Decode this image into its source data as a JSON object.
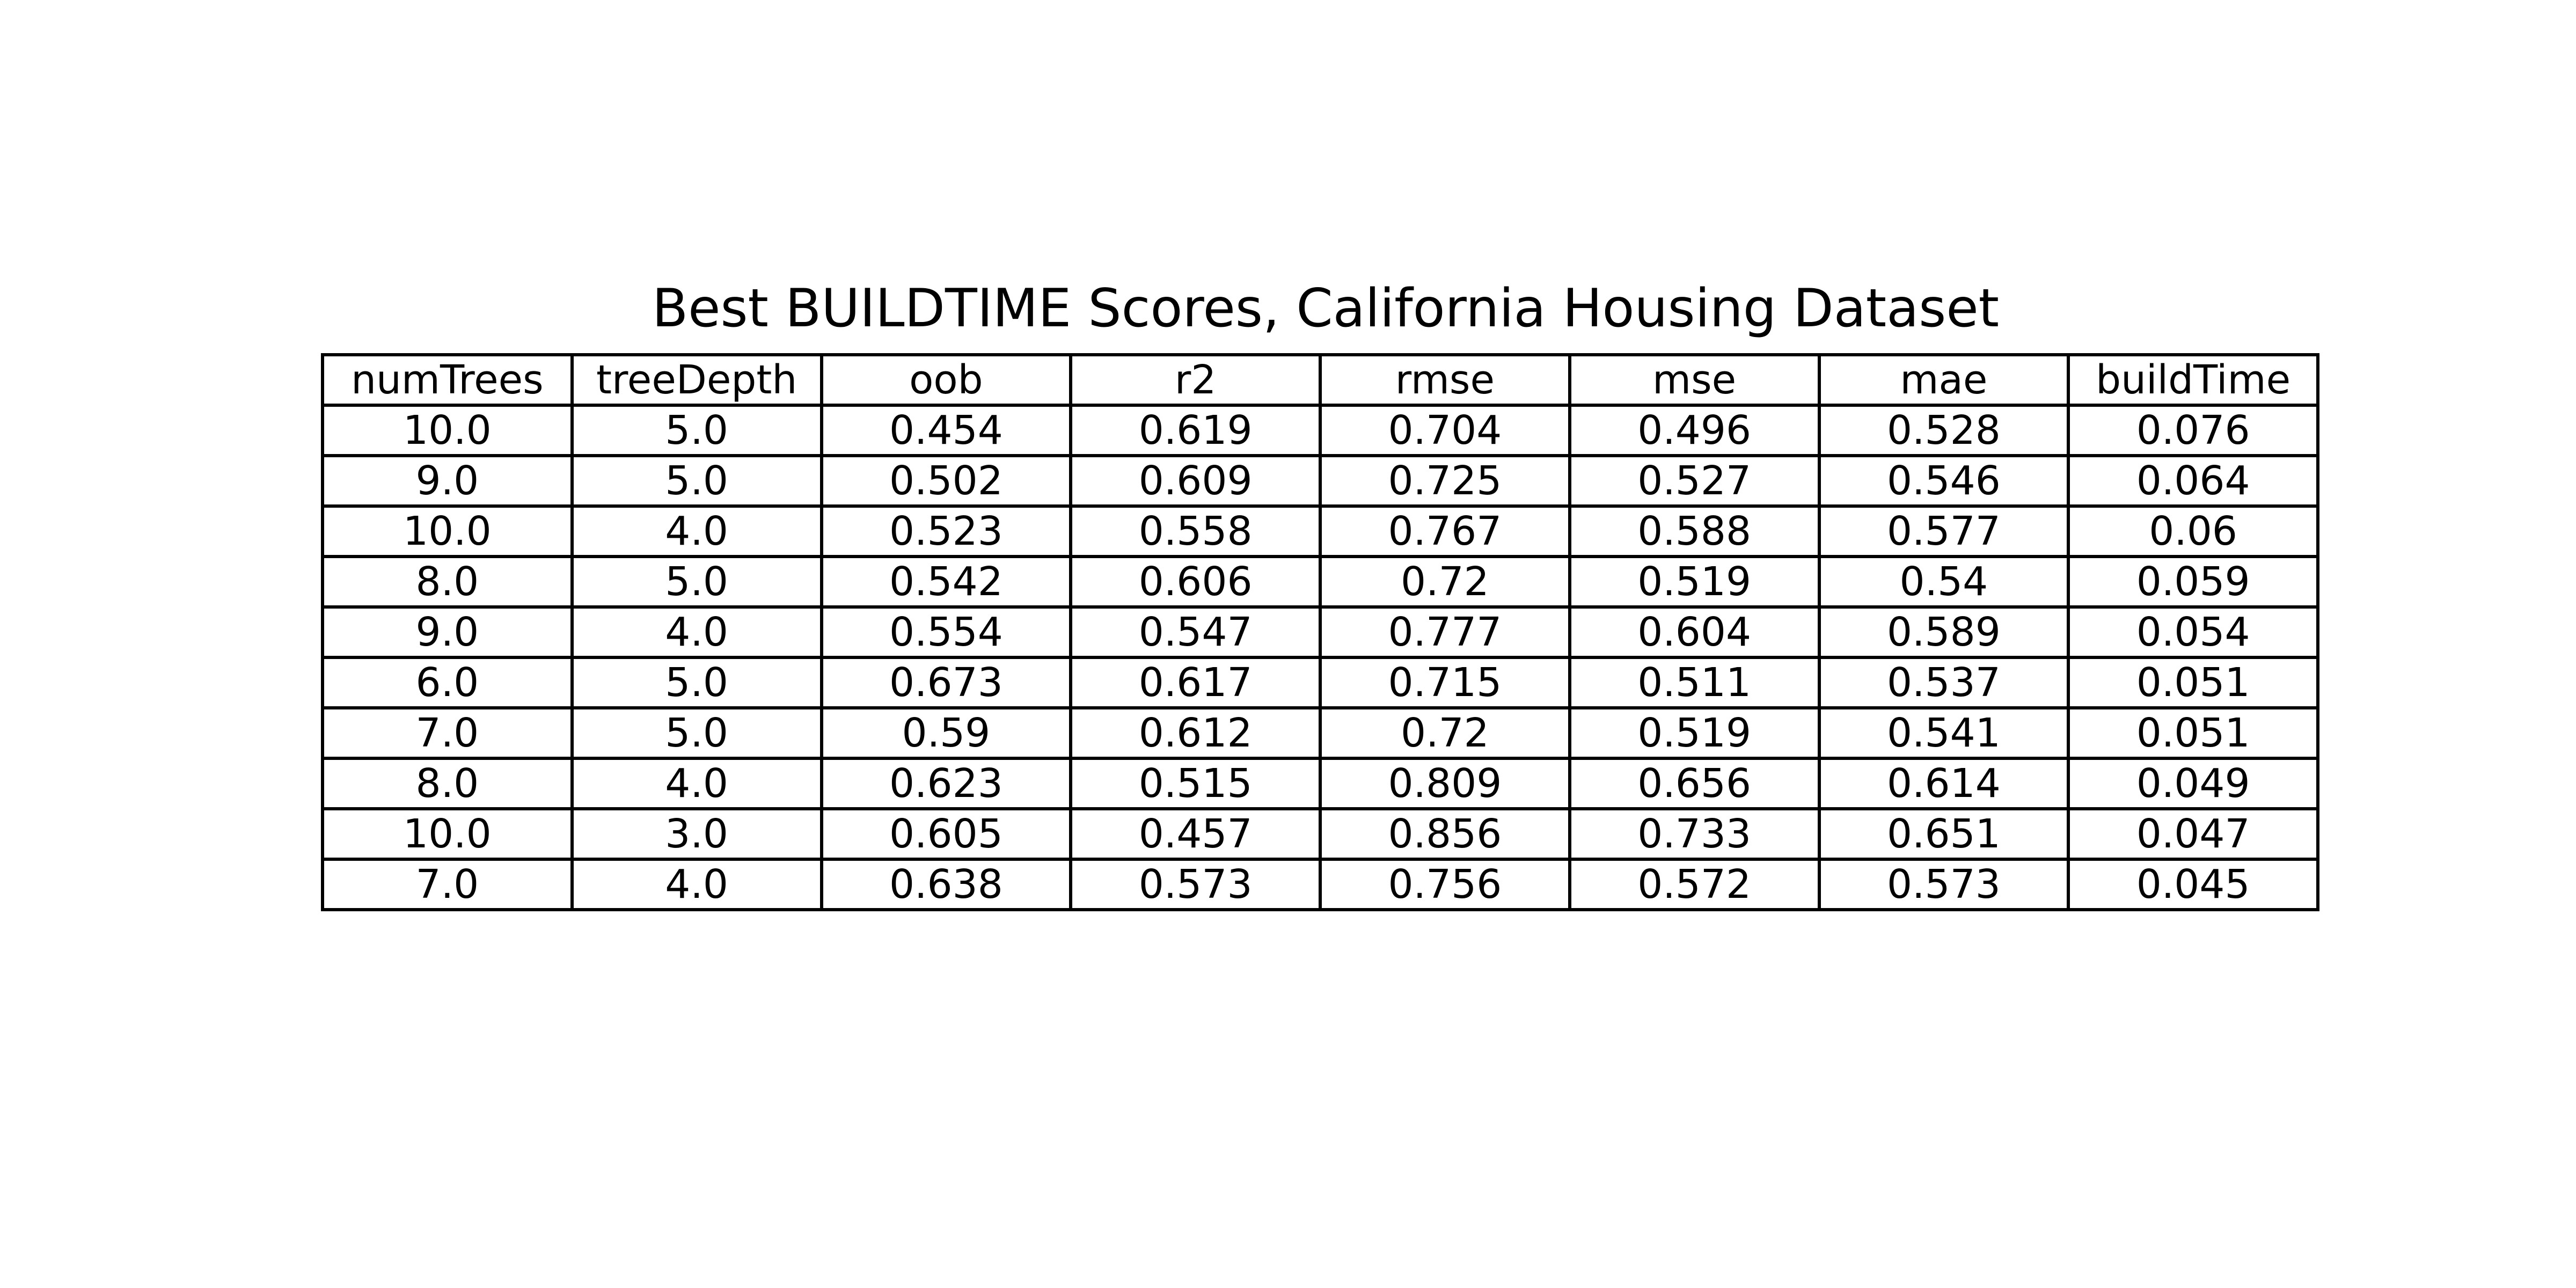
{
  "chart_data": {
    "type": "table",
    "title": "Best BUILDTIME Scores, California Housing Dataset",
    "columns": [
      "numTrees",
      "treeDepth",
      "oob",
      "r2",
      "rmse",
      "mse",
      "mae",
      "buildTime"
    ],
    "rows": [
      [
        "10.0",
        "5.0",
        "0.454",
        "0.619",
        "0.704",
        "0.496",
        "0.528",
        "0.076"
      ],
      [
        "9.0",
        "5.0",
        "0.502",
        "0.609",
        "0.725",
        "0.527",
        "0.546",
        "0.064"
      ],
      [
        "10.0",
        "4.0",
        "0.523",
        "0.558",
        "0.767",
        "0.588",
        "0.577",
        "0.06"
      ],
      [
        "8.0",
        "5.0",
        "0.542",
        "0.606",
        "0.72",
        "0.519",
        "0.54",
        "0.059"
      ],
      [
        "9.0",
        "4.0",
        "0.554",
        "0.547",
        "0.777",
        "0.604",
        "0.589",
        "0.054"
      ],
      [
        "6.0",
        "5.0",
        "0.673",
        "0.617",
        "0.715",
        "0.511",
        "0.537",
        "0.051"
      ],
      [
        "7.0",
        "5.0",
        "0.59",
        "0.612",
        "0.72",
        "0.519",
        "0.541",
        "0.051"
      ],
      [
        "8.0",
        "4.0",
        "0.623",
        "0.515",
        "0.809",
        "0.656",
        "0.614",
        "0.049"
      ],
      [
        "10.0",
        "3.0",
        "0.605",
        "0.457",
        "0.856",
        "0.733",
        "0.651",
        "0.047"
      ],
      [
        "7.0",
        "4.0",
        "0.638",
        "0.573",
        "0.756",
        "0.572",
        "0.573",
        "0.045"
      ]
    ]
  }
}
